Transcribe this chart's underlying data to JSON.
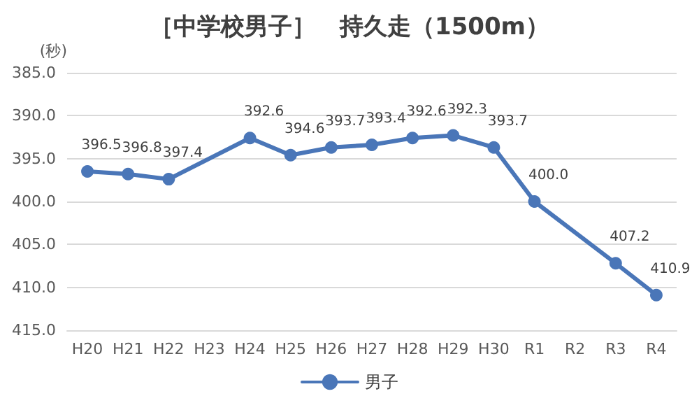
{
  "chart_data": {
    "type": "line",
    "title": "［中学校男子］　持久走（1500m）",
    "ylabel": "(秒)",
    "categories": [
      "H20",
      "H21",
      "H22",
      "H23",
      "H24",
      "H25",
      "H26",
      "H27",
      "H28",
      "H29",
      "H30",
      "R1",
      "R2",
      "R3",
      "R4"
    ],
    "series": [
      {
        "name": "男子",
        "color": "#4a76b8",
        "values": [
          396.5,
          396.8,
          397.4,
          null,
          392.6,
          394.6,
          393.7,
          393.4,
          392.6,
          392.3,
          393.7,
          400.0,
          null,
          407.2,
          410.9
        ],
        "value_labels": [
          "396.5",
          "396.8",
          "397.4",
          null,
          "392.6",
          "394.6",
          "393.7",
          "393.4",
          "392.6",
          "392.3",
          "393.7",
          "400.0",
          null,
          "407.2",
          "410.9"
        ]
      }
    ],
    "ylim": [
      415,
      385
    ],
    "yticks": [
      {
        "value": 385,
        "label": "385.0"
      },
      {
        "value": 390,
        "label": "390.0"
      },
      {
        "value": 395,
        "label": "395.0"
      },
      {
        "value": 400,
        "label": "400.0"
      },
      {
        "value": 405,
        "label": "405.0"
      },
      {
        "value": 410,
        "label": "410.0"
      },
      {
        "value": 415,
        "label": "415.0"
      }
    ],
    "grid": "y",
    "legend": "bottom",
    "marker": "circle",
    "line_style": "solid"
  }
}
